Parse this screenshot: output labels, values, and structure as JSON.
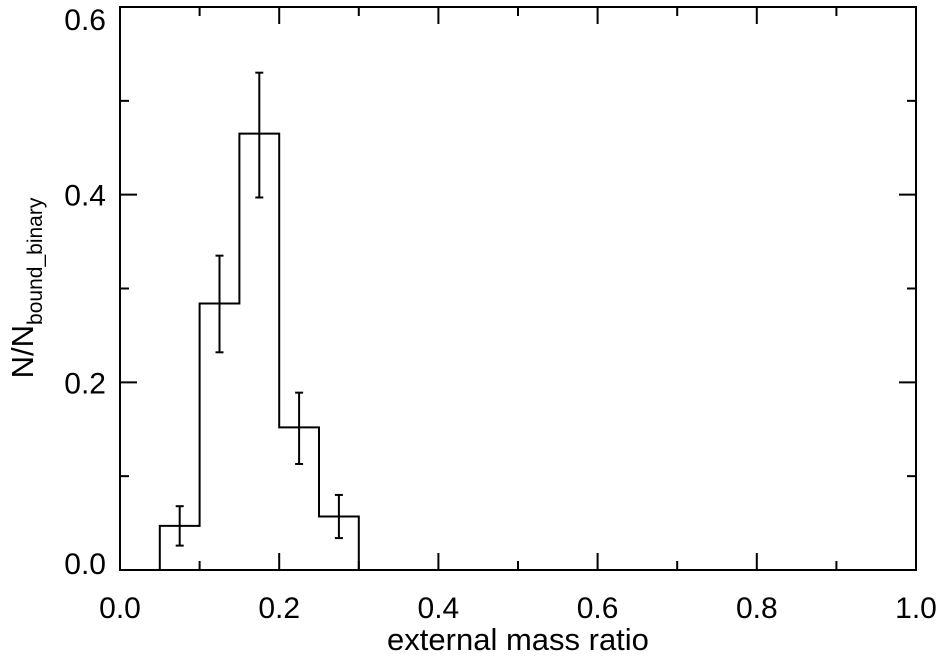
{
  "chart_data": {
    "type": "bar",
    "style": "step-histogram",
    "title": "",
    "xlabel": "external mass ratio",
    "ylabel": {
      "main": "N/N",
      "subscript": "bound_binary"
    },
    "xlim": [
      0.0,
      1.0
    ],
    "ylim": [
      0.0,
      0.6
    ],
    "x_major_ticks": [
      0.0,
      0.2,
      0.4,
      0.6,
      0.8,
      1.0
    ],
    "x_tick_labels": [
      "0.0",
      "0.2",
      "0.4",
      "0.6",
      "0.8",
      "1.0"
    ],
    "x_minor_ticks": [
      0.1,
      0.3,
      0.5,
      0.7,
      0.9
    ],
    "y_major_ticks": [
      0.0,
      0.2,
      0.4,
      0.6
    ],
    "y_tick_labels": [
      "0.0",
      "0.2",
      "0.4",
      "0.6"
    ],
    "y_minor_ticks": [
      0.1,
      0.3,
      0.5
    ],
    "bin_edges": [
      0.0,
      0.05,
      0.1,
      0.15,
      0.2,
      0.25,
      0.3,
      0.35,
      0.4,
      0.45,
      0.5,
      0.55,
      0.6,
      0.65,
      0.7,
      0.75,
      0.8,
      0.85,
      0.9,
      0.95,
      1.0
    ],
    "values": [
      0.0,
      0.047,
      0.284,
      0.465,
      0.152,
      0.057,
      0.0,
      0.0,
      0.0,
      0.0,
      0.0,
      0.0,
      0.0,
      0.0,
      0.0,
      0.0,
      0.0,
      0.0,
      0.0,
      0.0
    ],
    "error_bars": [
      {
        "x": 0.075,
        "low": 0.026,
        "high": 0.068
      },
      {
        "x": 0.125,
        "low": 0.232,
        "high": 0.335
      },
      {
        "x": 0.175,
        "low": 0.397,
        "high": 0.53
      },
      {
        "x": 0.225,
        "low": 0.113,
        "high": 0.189
      },
      {
        "x": 0.275,
        "low": 0.034,
        "high": 0.08
      }
    ],
    "grid": false,
    "legend": "none"
  }
}
